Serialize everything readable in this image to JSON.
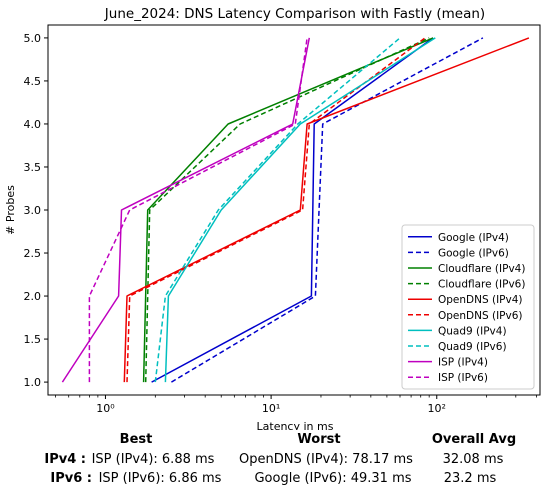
{
  "chart_data": {
    "type": "line",
    "title": "June_2024: DNS Latency Comparison with Fastly (mean)",
    "xlabel": "Latency in ms",
    "ylabel": "# Probes",
    "xscale": "log",
    "xlim": [
      0.45,
      420
    ],
    "ylim": [
      0.85,
      5.15
    ],
    "xticks": [
      {
        "value": 1,
        "label": "10⁰"
      },
      {
        "value": 10,
        "label": "10¹"
      },
      {
        "value": 100,
        "label": "10²"
      }
    ],
    "yticks": [
      1.0,
      1.5,
      2.0,
      2.5,
      3.0,
      3.5,
      4.0,
      4.5,
      5.0
    ],
    "ytick_labels": [
      "1.0",
      "1.5",
      "2.0",
      "2.5",
      "3.0",
      "3.5",
      "4.0",
      "4.5",
      "5.0"
    ],
    "grid": false,
    "legend_position": "lower-right",
    "series": [
      {
        "name": "Google (IPv4)",
        "color": "#0000cc",
        "dash": "solid",
        "points": [
          [
            1.9,
            1
          ],
          [
            17.5,
            2
          ],
          [
            18.2,
            4
          ],
          [
            95,
            5
          ]
        ]
      },
      {
        "name": "Google (IPv6)",
        "color": "#0000cc",
        "dash": "dashed",
        "points": [
          [
            2.5,
            1
          ],
          [
            18.5,
            2
          ],
          [
            20.5,
            4
          ],
          [
            190,
            5
          ]
        ]
      },
      {
        "name": "Cloudflare (IPv4)",
        "color": "#008000",
        "dash": "solid",
        "points": [
          [
            1.7,
            1
          ],
          [
            1.8,
            3
          ],
          [
            5.5,
            4
          ],
          [
            95,
            5
          ]
        ]
      },
      {
        "name": "Cloudflare (IPv6)",
        "color": "#008000",
        "dash": "dashed",
        "points": [
          [
            1.75,
            1
          ],
          [
            1.85,
            3
          ],
          [
            6.5,
            4
          ],
          [
            90,
            5
          ]
        ]
      },
      {
        "name": "OpenDNS (IPv4)",
        "color": "#ee0000",
        "dash": "solid",
        "points": [
          [
            1.3,
            1
          ],
          [
            1.35,
            2
          ],
          [
            15,
            3
          ],
          [
            16.5,
            4
          ],
          [
            360,
            5
          ]
        ]
      },
      {
        "name": "OpenDNS (IPv6)",
        "color": "#ee0000",
        "dash": "dashed",
        "points": [
          [
            1.35,
            1
          ],
          [
            1.4,
            2
          ],
          [
            15.5,
            3
          ],
          [
            17,
            4
          ],
          [
            85,
            5
          ]
        ]
      },
      {
        "name": "Quad9 (IPv4)",
        "color": "#00bfbf",
        "dash": "solid",
        "points": [
          [
            2.3,
            1
          ],
          [
            2.4,
            2
          ],
          [
            5,
            3
          ],
          [
            15,
            4
          ],
          [
            98,
            5
          ]
        ]
      },
      {
        "name": "Quad9 (IPv6)",
        "color": "#00bfbf",
        "dash": "dashed",
        "points": [
          [
            2,
            1
          ],
          [
            2.3,
            2
          ],
          [
            4.8,
            3
          ],
          [
            14.5,
            4
          ],
          [
            60,
            5
          ]
        ]
      },
      {
        "name": "ISP (IPv4)",
        "color": "#bf00bf",
        "dash": "solid",
        "points": [
          [
            0.55,
            1
          ],
          [
            1.2,
            2
          ],
          [
            1.25,
            3
          ],
          [
            13.5,
            4
          ],
          [
            17,
            5
          ]
        ]
      },
      {
        "name": "ISP (IPv6)",
        "color": "#bf00bf",
        "dash": "dashed",
        "points": [
          [
            0.8,
            1
          ],
          [
            0.8,
            2
          ],
          [
            1.4,
            3
          ],
          [
            14,
            4
          ],
          [
            16.5,
            5
          ]
        ]
      }
    ]
  },
  "summary": {
    "headers": {
      "best": "Best",
      "worst": "Worst",
      "avg": "Overall Avg"
    },
    "rows": [
      {
        "label": "IPv4 :",
        "best": "ISP (IPv4): 6.88 ms",
        "worst": "OpenDNS (IPv4): 78.17 ms",
        "avg": "32.08 ms"
      },
      {
        "label": "IPv6 :",
        "best": "ISP (IPv6): 6.86 ms",
        "worst": "Google (IPv6): 49.31 ms",
        "avg": "23.2 ms"
      }
    ]
  }
}
